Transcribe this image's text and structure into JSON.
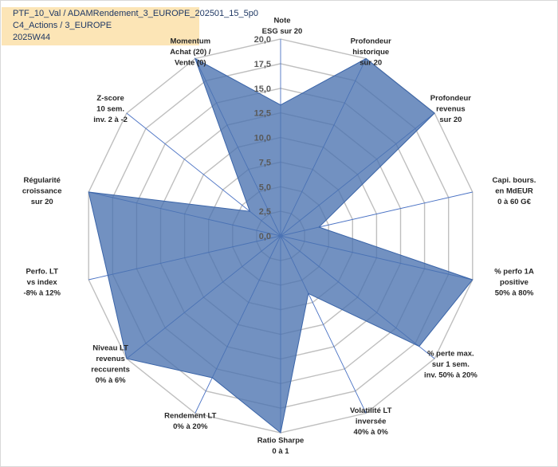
{
  "title_lines": [
    "PTF_10_Val / ADAMRendement_3_EUROPE_202501_15_5p0",
    "C4_Actions / 3_EUROPE",
    "2025W44"
  ],
  "chart_data": {
    "type": "radar",
    "title": "PTF_10_Val / ADAMRendement_3_EUROPE_202501_15_5p0 C4_Actions / 3_EUROPE 2025W44",
    "rmin": 0,
    "rmax": 20,
    "ticks": [
      "0,0",
      "2,5",
      "5,0",
      "7,5",
      "10,0",
      "12,5",
      "15,0",
      "17,5",
      "20,0"
    ],
    "series": [
      {
        "name": "PTF_10_Val",
        "color": "#4a72b0"
      }
    ],
    "axes": [
      {
        "label": [
          "Note",
          "ESG sur 20"
        ],
        "value": 13.3
      },
      {
        "label": [
          "Profondeur",
          "historique",
          "sur 20"
        ],
        "value": 20.0
      },
      {
        "label": [
          "Profondeur",
          "revenus",
          "sur 20"
        ],
        "value": 20.0
      },
      {
        "label": [
          "Capi. bours.",
          "en MdEUR",
          "0 à 60 G€"
        ],
        "value": 4.0
      },
      {
        "label": [
          "% perfo 1A",
          "positive",
          "50% à 80%"
        ],
        "value": 20.0
      },
      {
        "label": [
          "% perte max.",
          "sur 1 sem.",
          "inv. 50% à 20%"
        ],
        "value": 18.0
      },
      {
        "label": [
          "Volatilité LT",
          "inversée",
          "40% à 0%"
        ],
        "value": 6.5
      },
      {
        "label": [
          "Ratio Sharpe",
          "0 à 1"
        ],
        "value": 20.0
      },
      {
        "label": [
          "Rendement LT",
          "0% à 20%"
        ],
        "value": 16.0
      },
      {
        "label": [
          "Niveau LT",
          "revenus",
          "reccurents",
          "0% à 6%"
        ],
        "value": 20.0
      },
      {
        "label": [
          "Perfo. LT",
          "vs index",
          "-8% à 12%"
        ],
        "value": 18.0
      },
      {
        "label": [
          "Régularité",
          "croissance",
          "sur 20"
        ],
        "value": 20.0
      },
      {
        "label": [
          "Z-score",
          "10 sem.",
          "inv. 2 à -2"
        ],
        "value": 4.0
      },
      {
        "label": [
          "Momentum",
          "Achat (20) /",
          "Vente (0)"
        ],
        "value": 20.0
      }
    ]
  }
}
